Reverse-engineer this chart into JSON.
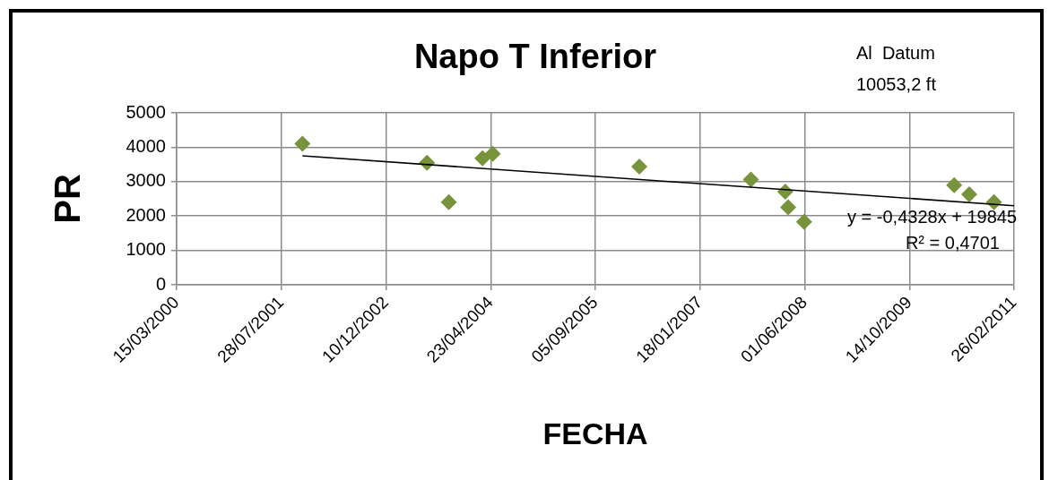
{
  "chart_data": {
    "type": "scatter",
    "title": "Napo T Inferior",
    "xlabel": "FECHA",
    "ylabel": "PR",
    "annotations": [
      "Al  Datum",
      "10053,2 ft",
      "y = -0,4328x + 19845",
      "R² = 0,4701"
    ],
    "series": [
      {
        "type": "scatter",
        "marker": "diamond",
        "color": "#77933c",
        "x": [
          "2001-11-06",
          "2003-06-24",
          "2003-10-06",
          "2004-03-15",
          "2004-05-03",
          "2006-04-03",
          "2007-09-18",
          "2008-02-29",
          "2008-03-14",
          "2008-05-29",
          "2010-05-16",
          "2010-07-27",
          "2010-11-22"
        ],
        "values": [
          4100,
          3550,
          2400,
          3680,
          3810,
          3440,
          3060,
          2710,
          2250,
          1830,
          2900,
          2630,
          2400
        ]
      },
      {
        "type": "line",
        "marker": "none",
        "color": "#000000",
        "x": [
          "2001-11-06",
          "2011-02-26"
        ],
        "values": [
          3750,
          2300
        ]
      }
    ],
    "xlim": [
      "2000-03-15",
      "2011-02-26"
    ],
    "xticks": [
      {
        "value": "2000-03-15",
        "label": "15/03/2000"
      },
      {
        "value": "2001-07-28",
        "label": "28/07/2001"
      },
      {
        "value": "2002-12-10",
        "label": "10/12/2002"
      },
      {
        "value": "2004-04-23",
        "label": "23/04/2004"
      },
      {
        "value": "2005-09-05",
        "label": "05/09/2005"
      },
      {
        "value": "2007-01-18",
        "label": "18/01/2007"
      },
      {
        "value": "2008-06-01",
        "label": "01/06/2008"
      },
      {
        "value": "2009-10-14",
        "label": "14/10/2009"
      },
      {
        "value": "2011-02-26",
        "label": "26/02/2011"
      }
    ],
    "ylim": [
      0,
      5000
    ],
    "yticks": [
      0,
      1000,
      2000,
      3000,
      4000,
      5000
    ],
    "grid": true,
    "legend": false
  }
}
